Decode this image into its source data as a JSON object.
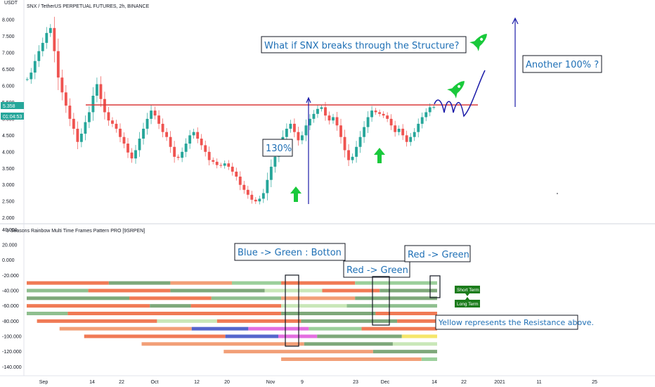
{
  "header": {
    "symbol_title": "SNX / TetherUS PERPETUAL FUTURES, 2h, BINANCE",
    "currency": "USDT",
    "price_tag": "5.358",
    "countdown": "01:04:53"
  },
  "indicator": {
    "title": "9 Seasons Rainbow Multi Time Frames Pattern PRO [9SRPEN]"
  },
  "annotations": {
    "question": "What if SNX breaks through the Structure?",
    "gain": "130%",
    "another": "Another 100% ?",
    "blue_green": "Blue -> Green : Botton",
    "red_green_1": "Red -> Green",
    "red_green_2": "Red -> Green",
    "yellow_note": "Yellow represents the Resistance above.",
    "short_term": "Short Term",
    "long_term": "Long Term"
  },
  "colors": {
    "resistance_line": "#d93a3a",
    "projection": "#1b1ba8",
    "rocket": "#19c93b",
    "up_candle": "#26a69a",
    "down_candle": "#ef5350",
    "annotation_text": "#1e6fb5",
    "badge_green": "#1c7c1c"
  },
  "chart_data": [
    {
      "type": "candlestick",
      "title": "SNX / TetherUS PERPETUAL FUTURES, 2h, BINANCE",
      "x_ticks": [
        "Sep",
        "14",
        "22",
        "Oct",
        "12",
        "20",
        "Nov",
        "9",
        "23",
        "Dec",
        "14",
        "22",
        "2021",
        "11",
        "25"
      ],
      "y_ticks": [
        "8.000",
        "7.500",
        "7.000",
        "6.500",
        "6.000",
        "5.500",
        "5.000",
        "4.500",
        "4.000",
        "3.500",
        "3.000",
        "2.500",
        "2.000"
      ],
      "ylim": [
        1.95,
        8.3
      ],
      "resistance_level": 5.42,
      "last_price": 5.358,
      "series": [
        {
          "values": [
            6.2,
            6.4,
            6.75,
            7.05,
            7.3,
            7.6,
            7.75,
            7.05,
            6.25,
            5.8,
            5.4,
            5.0,
            4.7,
            4.3,
            4.55,
            4.9,
            5.2,
            5.7,
            6.05,
            5.6,
            5.2,
            4.95,
            4.85,
            4.7,
            4.45,
            4.25,
            3.98,
            3.8,
            4.05,
            4.4,
            4.7,
            5.0,
            5.25,
            5.1,
            4.85,
            4.6,
            4.45,
            4.15,
            3.85,
            3.82,
            4.0,
            4.25,
            4.5,
            4.6,
            4.4,
            4.2,
            4.0,
            3.75,
            3.7,
            3.6,
            3.58,
            3.65,
            3.55,
            3.4,
            3.25,
            3.0,
            2.85,
            2.7,
            2.55,
            2.5,
            2.58,
            2.75,
            3.15,
            3.55,
            3.85,
            4.1,
            4.45,
            4.7,
            4.85,
            4.6,
            4.35,
            4.5,
            4.8,
            5.0,
            5.15,
            5.3,
            5.35,
            5.1,
            4.95,
            5.05,
            4.8,
            4.45,
            4.05,
            3.75,
            3.85,
            4.15,
            4.45,
            4.75,
            5.05,
            5.25,
            5.2,
            5.15,
            5.1,
            5.0,
            4.8,
            4.6,
            4.7,
            4.5,
            4.3,
            4.45,
            4.6,
            4.85,
            5.05,
            5.2,
            5.35,
            5.36
          ]
        }
      ]
    },
    {
      "type": "heatmap",
      "title": "9 Seasons Rainbow Multi Time Frames Pattern PRO [9SRPEN]",
      "y_ticks": [
        "40.000",
        "20.000",
        "0.000",
        "-20.000",
        "-40.000",
        "-60.000",
        "-80.000",
        "-100.000",
        "-120.000",
        "-140.000"
      ],
      "ylim": [
        -148,
        44
      ],
      "rows": [
        {
          "level": -30,
          "start": 0.0,
          "end": 1.0,
          "segments": [
            [
              "#f07a55",
              0.2
            ],
            [
              "#7ea87a",
              0.35
            ],
            [
              "#f29f77",
              0.5
            ],
            [
              "#9bcf9b",
              0.62
            ],
            [
              "#f07a55",
              0.8
            ],
            [
              "#9bcf9b",
              1.0
            ]
          ]
        },
        {
          "level": -40,
          "start": 0.0,
          "end": 1.0,
          "segments": [
            [
              "#8fbf8f",
              0.15
            ],
            [
              "#f07a55",
              0.35
            ],
            [
              "#7ea87a",
              0.58
            ],
            [
              "#c9e7b8",
              0.72
            ],
            [
              "#f07a55",
              0.86
            ],
            [
              "#7ea87a",
              1.0
            ]
          ]
        },
        {
          "level": -50,
          "start": 0.0,
          "end": 1.0,
          "segments": [
            [
              "#7ea87a",
              0.25
            ],
            [
              "#f07a55",
              0.45
            ],
            [
              "#8fbf8f",
              0.62
            ],
            [
              "#f29f77",
              0.8
            ],
            [
              "#7ea87a",
              1.0
            ]
          ]
        },
        {
          "level": -60,
          "start": 0.0,
          "end": 1.0,
          "segments": [
            [
              "#f07a55",
              0.3
            ],
            [
              "#7ea87a",
              0.4
            ],
            [
              "#f07a55",
              0.62
            ],
            [
              "#c9e7b8",
              0.78
            ],
            [
              "#8fbf8f",
              1.0
            ]
          ]
        },
        {
          "level": -70,
          "start": 0.0,
          "end": 1.0,
          "segments": [
            [
              "#8fbf8f",
              0.1
            ],
            [
              "#f07a55",
              0.62
            ],
            [
              "#7ea87a",
              0.85
            ],
            [
              "#f07a55",
              1.0
            ]
          ]
        },
        {
          "level": -80,
          "start": 0.025,
          "end": 1.0,
          "segments": [
            [
              "#f07a55",
              0.3
            ],
            [
              "#c9e7b8",
              0.45
            ],
            [
              "#f07a55",
              0.66
            ],
            [
              "#7ea87a",
              0.9
            ],
            [
              "#f07a55",
              1.0
            ]
          ]
        },
        {
          "level": -90,
          "start": 0.08,
          "end": 1.0,
          "segments": [
            [
              "#f29f77",
              0.35
            ],
            [
              "#5566cc",
              0.5
            ],
            [
              "#e36ee0",
              0.66
            ],
            [
              "#9bcf9b",
              0.8
            ],
            [
              "#f07a55",
              1.0
            ]
          ]
        },
        {
          "level": -100,
          "start": 0.14,
          "end": 1.0,
          "segments": [
            [
              "#f07a55",
              0.4
            ],
            [
              "#5566cc",
              0.55
            ],
            [
              "#e36ee0",
              0.66
            ],
            [
              "#7ea87a",
              0.9
            ],
            [
              "#f5e66a",
              1.0
            ]
          ]
        },
        {
          "level": -110,
          "start": 0.28,
          "end": 1.0,
          "segments": [
            [
              "#f29f77",
              0.55
            ],
            [
              "#7ea87a",
              0.85
            ],
            [
              "#c9e7b8",
              1.0
            ]
          ]
        },
        {
          "level": -120,
          "start": 0.48,
          "end": 1.0,
          "segments": [
            [
              "#f29f77",
              0.7
            ],
            [
              "#7ea87a",
              1.0
            ]
          ]
        },
        {
          "level": -130,
          "start": 0.62,
          "end": 1.0,
          "segments": [
            [
              "#f29f77",
              0.9
            ],
            [
              "#9bcf9b",
              1.0
            ]
          ]
        }
      ]
    }
  ]
}
